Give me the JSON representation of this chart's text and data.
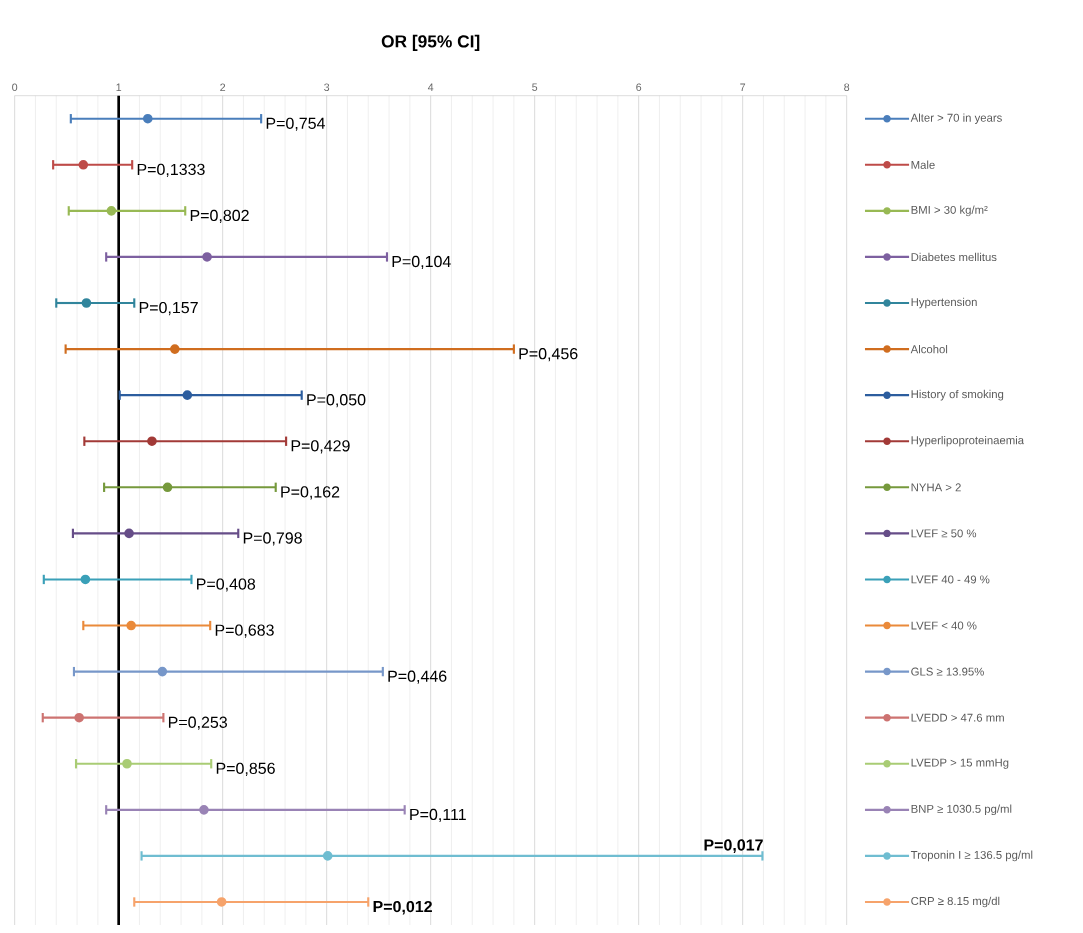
{
  "chart_data": {
    "type": "line",
    "orientation": "horizontal",
    "title": "OR [95% CI]",
    "categories": [
      null,
      null,
      null,
      null,
      null,
      null,
      null,
      null,
      null,
      null,
      null,
      null,
      null,
      null,
      null,
      null,
      null,
      null
    ],
    "xlim": [
      0,
      8
    ],
    "xticks": [
      0,
      1,
      2,
      3,
      4,
      5,
      6,
      7,
      8
    ],
    "grid": true,
    "legend": "right",
    "marker": "circle",
    "line_style": "solid",
    "ref_lines": [
      {
        "axis": "x",
        "value": 1,
        "color": "#000000"
      }
    ],
    "annotations": [
      "P=0,754",
      "P=0,1333",
      "P=0,802",
      "P=0,104",
      "P=0,157",
      "P=0,456",
      "P=0,050",
      "P=0,429",
      "P=0,162",
      "P=0,798",
      "P=0,408",
      "P=0,683",
      "P=0,446",
      "P=0,253",
      "P=0,856",
      "P=0,111",
      "**P=0,017**",
      "**P=0,012**"
    ],
    "series": [
      {
        "name": "Alter > 70 in years",
        "color": "#4a7ebb",
        "values": [
          1.28,
          null,
          null,
          null,
          null,
          null,
          null,
          null,
          null,
          null,
          null,
          null,
          null,
          null,
          null,
          null,
          null,
          null
        ],
        "errors": [
          [
            0.54,
            2.37
          ],
          null,
          null,
          null,
          null,
          null,
          null,
          null,
          null,
          null,
          null,
          null,
          null,
          null,
          null,
          null,
          null,
          null
        ]
      },
      {
        "name": "Male",
        "color": "#be4b48",
        "values": [
          null,
          0.66,
          null,
          null,
          null,
          null,
          null,
          null,
          null,
          null,
          null,
          null,
          null,
          null,
          null,
          null,
          null,
          null
        ],
        "errors": [
          null,
          [
            0.37,
            1.13
          ],
          null,
          null,
          null,
          null,
          null,
          null,
          null,
          null,
          null,
          null,
          null,
          null,
          null,
          null,
          null,
          null
        ]
      },
      {
        "name": "BMI > 30 kg/m²",
        "color": "#98b954",
        "values": [
          null,
          null,
          0.93,
          null,
          null,
          null,
          null,
          null,
          null,
          null,
          null,
          null,
          null,
          null,
          null,
          null,
          null,
          null
        ],
        "errors": [
          null,
          null,
          [
            0.52,
            1.64
          ],
          null,
          null,
          null,
          null,
          null,
          null,
          null,
          null,
          null,
          null,
          null,
          null,
          null,
          null,
          null
        ]
      },
      {
        "name": "Diabetes mellitus",
        "color": "#7d60a0",
        "values": [
          null,
          null,
          null,
          1.85,
          null,
          null,
          null,
          null,
          null,
          null,
          null,
          null,
          null,
          null,
          null,
          null,
          null,
          null
        ],
        "errors": [
          null,
          null,
          null,
          [
            0.88,
            3.58
          ],
          null,
          null,
          null,
          null,
          null,
          null,
          null,
          null,
          null,
          null,
          null,
          null,
          null,
          null
        ]
      },
      {
        "name": "Hypertension",
        "color": "#31859c",
        "values": [
          null,
          null,
          null,
          null,
          0.69,
          null,
          null,
          null,
          null,
          null,
          null,
          null,
          null,
          null,
          null,
          null,
          null,
          null
        ],
        "errors": [
          null,
          null,
          null,
          null,
          [
            0.4,
            1.15
          ],
          null,
          null,
          null,
          null,
          null,
          null,
          null,
          null,
          null,
          null,
          null,
          null,
          null
        ]
      },
      {
        "name": "Alcohol",
        "color": "#d06d1f",
        "values": [
          null,
          null,
          null,
          null,
          null,
          1.54,
          null,
          null,
          null,
          null,
          null,
          null,
          null,
          null,
          null,
          null,
          null,
          null
        ],
        "errors": [
          null,
          null,
          null,
          null,
          null,
          [
            0.49,
            4.8
          ],
          null,
          null,
          null,
          null,
          null,
          null,
          null,
          null,
          null,
          null,
          null,
          null
        ]
      },
      {
        "name": "History of smoking",
        "color": "#2c5d9e",
        "values": [
          null,
          null,
          null,
          null,
          null,
          null,
          1.66,
          null,
          null,
          null,
          null,
          null,
          null,
          null,
          null,
          null,
          null,
          null
        ],
        "errors": [
          null,
          null,
          null,
          null,
          null,
          null,
          [
            1.01,
            2.76
          ],
          null,
          null,
          null,
          null,
          null,
          null,
          null,
          null,
          null,
          null,
          null
        ]
      },
      {
        "name": "Hyperlipoproteinaemia",
        "color": "#a23a37",
        "values": [
          null,
          null,
          null,
          null,
          null,
          null,
          null,
          1.32,
          null,
          null,
          null,
          null,
          null,
          null,
          null,
          null,
          null,
          null
        ],
        "errors": [
          null,
          null,
          null,
          null,
          null,
          null,
          null,
          [
            0.67,
            2.61
          ],
          null,
          null,
          null,
          null,
          null,
          null,
          null,
          null,
          null,
          null
        ]
      },
      {
        "name": "NYHA > 2",
        "color": "#76993c",
        "values": [
          null,
          null,
          null,
          null,
          null,
          null,
          null,
          null,
          1.47,
          null,
          null,
          null,
          null,
          null,
          null,
          null,
          null,
          null
        ],
        "errors": [
          null,
          null,
          null,
          null,
          null,
          null,
          null,
          null,
          [
            0.86,
            2.51
          ],
          null,
          null,
          null,
          null,
          null,
          null,
          null,
          null,
          null
        ]
      },
      {
        "name": "LVEF ≥ 50 %",
        "color": "#664d88",
        "values": [
          null,
          null,
          null,
          null,
          null,
          null,
          null,
          null,
          null,
          1.1,
          null,
          null,
          null,
          null,
          null,
          null,
          null,
          null
        ],
        "errors": [
          null,
          null,
          null,
          null,
          null,
          null,
          null,
          null,
          null,
          [
            0.56,
            2.15
          ],
          null,
          null,
          null,
          null,
          null,
          null,
          null,
          null
        ]
      },
      {
        "name": "LVEF 40 - 49 %",
        "color": "#3aa0b8",
        "values": [
          null,
          null,
          null,
          null,
          null,
          null,
          null,
          null,
          null,
          null,
          0.68,
          null,
          null,
          null,
          null,
          null,
          null,
          null
        ],
        "errors": [
          null,
          null,
          null,
          null,
          null,
          null,
          null,
          null,
          null,
          null,
          [
            0.28,
            1.7
          ],
          null,
          null,
          null,
          null,
          null,
          null,
          null
        ]
      },
      {
        "name": "LVEF < 40 %",
        "color": "#ea8a3a",
        "values": [
          null,
          null,
          null,
          null,
          null,
          null,
          null,
          null,
          null,
          null,
          null,
          1.12,
          null,
          null,
          null,
          null,
          null,
          null
        ],
        "errors": [
          null,
          null,
          null,
          null,
          null,
          null,
          null,
          null,
          null,
          null,
          null,
          [
            0.66,
            1.88
          ],
          null,
          null,
          null,
          null,
          null,
          null
        ]
      },
      {
        "name": "GLS ≥ 13.95%",
        "color": "#7797c9",
        "values": [
          null,
          null,
          null,
          null,
          null,
          null,
          null,
          null,
          null,
          null,
          null,
          null,
          1.42,
          null,
          null,
          null,
          null,
          null
        ],
        "errors": [
          null,
          null,
          null,
          null,
          null,
          null,
          null,
          null,
          null,
          null,
          null,
          null,
          [
            0.57,
            3.54
          ],
          null,
          null,
          null,
          null,
          null
        ]
      },
      {
        "name": "LVEDD >  47.6 mm",
        "color": "#cd7371",
        "values": [
          null,
          null,
          null,
          null,
          null,
          null,
          null,
          null,
          null,
          null,
          null,
          null,
          null,
          0.62,
          null,
          null,
          null,
          null
        ],
        "errors": [
          null,
          null,
          null,
          null,
          null,
          null,
          null,
          null,
          null,
          null,
          null,
          null,
          null,
          [
            0.27,
            1.43
          ],
          null,
          null,
          null,
          null
        ]
      },
      {
        "name": "LVEDP > 15 mmHg",
        "color": "#a9cc74",
        "values": [
          null,
          null,
          null,
          null,
          null,
          null,
          null,
          null,
          null,
          null,
          null,
          null,
          null,
          null,
          1.08,
          null,
          null,
          null
        ],
        "errors": [
          null,
          null,
          null,
          null,
          null,
          null,
          null,
          null,
          null,
          null,
          null,
          null,
          null,
          null,
          [
            0.59,
            1.89
          ],
          null,
          null,
          null
        ]
      },
      {
        "name": "BNP ≥ 1030.5 pg/ml",
        "color": "#9983b5",
        "values": [
          null,
          null,
          null,
          null,
          null,
          null,
          null,
          null,
          null,
          null,
          null,
          null,
          null,
          null,
          null,
          1.82,
          null,
          null
        ],
        "errors": [
          null,
          null,
          null,
          null,
          null,
          null,
          null,
          null,
          null,
          null,
          null,
          null,
          null,
          null,
          null,
          [
            0.88,
            3.75
          ],
          null,
          null
        ]
      },
      {
        "name": "Troponin I ≥ 136.5 pg/ml",
        "color": "#6fbdd1",
        "values": [
          null,
          null,
          null,
          null,
          null,
          null,
          null,
          null,
          null,
          null,
          null,
          null,
          null,
          null,
          null,
          null,
          3.01,
          null
        ],
        "errors": [
          null,
          null,
          null,
          null,
          null,
          null,
          null,
          null,
          null,
          null,
          null,
          null,
          null,
          null,
          null,
          null,
          [
            1.22,
            7.19
          ],
          null
        ]
      },
      {
        "name": "CRP ≥ 8.15 mg/dl",
        "color": "#f6a36b",
        "values": [
          null,
          null,
          null,
          null,
          null,
          null,
          null,
          null,
          null,
          null,
          null,
          null,
          null,
          null,
          null,
          null,
          null,
          1.99
        ],
        "errors": [
          null,
          null,
          null,
          null,
          null,
          null,
          null,
          null,
          null,
          null,
          null,
          null,
          null,
          null,
          null,
          null,
          null,
          [
            1.15,
            3.4
          ]
        ]
      }
    ]
  }
}
